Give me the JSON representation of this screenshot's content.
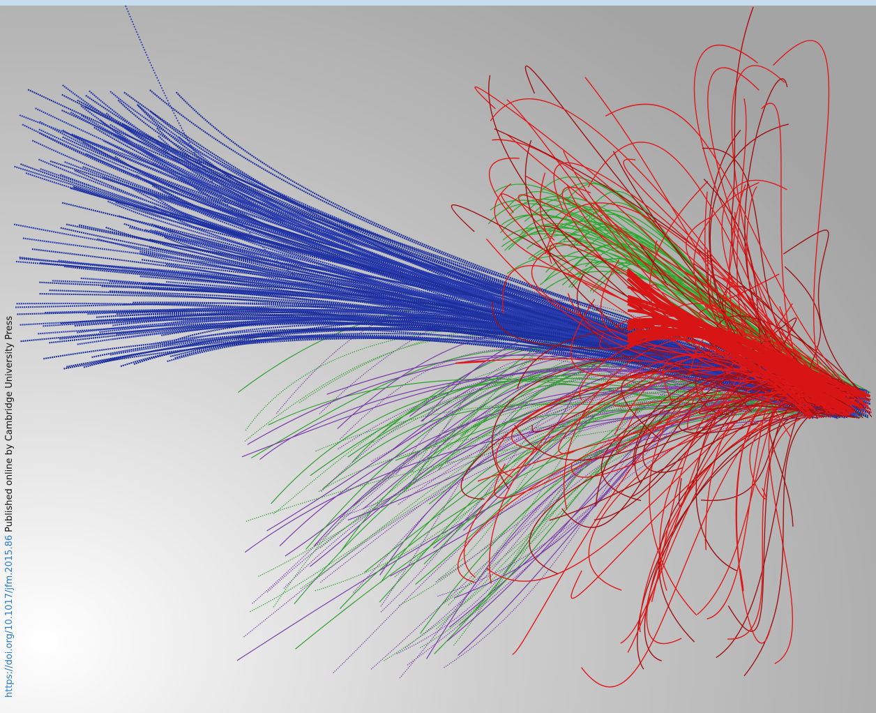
{
  "doi_link": "https://doi.org/10.1017/jfm.2015.86",
  "publisher_note": "Published online by Cambridge University Press"
}
